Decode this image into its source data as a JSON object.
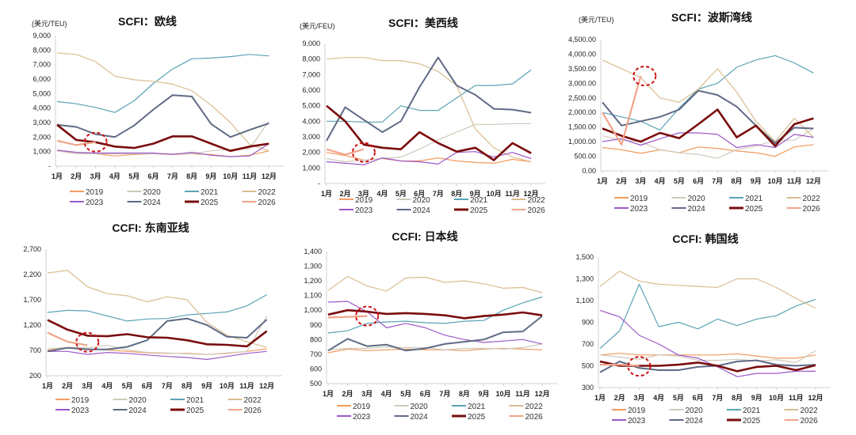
{
  "legend_years": [
    "2019",
    "2020",
    "2021",
    "2022",
    "2023",
    "2024",
    "2025",
    "2026"
  ],
  "series_colors": {
    "2019": "#f39b5e",
    "2020": "#cfcabc",
    "2021": "#5ba3b5",
    "2022": "#d9bd90",
    "2023": "#9b59c8",
    "2024": "#5f6a84",
    "2025": "#7a0c0c",
    "2026": "#f0a48a"
  },
  "highlight_color": "#cc1111",
  "chart_data": [
    {
      "type": "line",
      "title": "SCFI：欧线",
      "unit": "(美元/TEU)",
      "ylim": [
        0,
        9000
      ],
      "yticks": [
        "-",
        "1,000",
        "2,000",
        "3,000",
        "4,000",
        "5,000",
        "6,000",
        "7,000",
        "8,000",
        "9,000"
      ],
      "ytick_values": [
        0,
        1000,
        2000,
        3000,
        4000,
        5000,
        6000,
        7000,
        8000,
        9000
      ],
      "categories": [
        "1月",
        "2月",
        "3月",
        "4月",
        "5月",
        "6月",
        "7月",
        "8月",
        "9月",
        "10月",
        "11月",
        "12月"
      ],
      "legend": "bottom",
      "highlight": {
        "x": 3.0,
        "y": 1650
      },
      "series": [
        {
          "name": "2019",
          "values": [
            1050,
            950,
            850,
            700,
            800,
            850,
            800,
            850,
            800,
            650,
            750,
            1050
          ]
        },
        {
          "name": "2020",
          "values": [
            1050,
            850,
            850,
            850,
            850,
            850,
            850,
            850,
            1050,
            1150,
            1200,
            3100
          ]
        },
        {
          "name": "2021",
          "values": [
            4450,
            4300,
            4050,
            3700,
            4500,
            5700,
            6700,
            7400,
            7450,
            7550,
            7700,
            7600
          ]
        },
        {
          "name": "2022",
          "values": [
            7800,
            7700,
            7200,
            6200,
            5950,
            5850,
            5650,
            5200,
            4200,
            3000,
            1500,
            1050
          ]
        },
        {
          "name": "2023",
          "values": [
            1100,
            950,
            900,
            900,
            900,
            900,
            800,
            950,
            750,
            650,
            700,
            1550
          ]
        },
        {
          "name": "2024",
          "values": [
            2850,
            2700,
            2200,
            2000,
            2800,
            3900,
            4900,
            4800,
            2900,
            2000,
            2500,
            2950
          ]
        },
        {
          "name": "2025",
          "values": [
            2850,
            1800,
            1650,
            1350,
            1250,
            1550,
            2050,
            2050,
            1550,
            1050,
            1350,
            1550
          ]
        },
        {
          "name": "2026",
          "values": [
            1750,
            1450,
            1650
          ]
        }
      ]
    },
    {
      "type": "line",
      "title": "SCFI：美西线",
      "unit": "(美元/FEU)",
      "ylim": [
        0,
        9000
      ],
      "yticks": [
        "-",
        "1,000",
        "2,000",
        "3,000",
        "4,000",
        "5,000",
        "6,000",
        "7,000",
        "8,000",
        "9,000"
      ],
      "ytick_values": [
        0,
        1000,
        2000,
        3000,
        4000,
        5000,
        6000,
        7000,
        8000,
        9000
      ],
      "categories": [
        "1月",
        "2月",
        "3月",
        "4月",
        "5月",
        "6月",
        "7月",
        "8月",
        "9月",
        "10月",
        "11月",
        "12月"
      ],
      "legend": "bottom",
      "highlight": {
        "x": 3.0,
        "y": 2000
      },
      "series": [
        {
          "name": "2019",
          "values": [
            2000,
            1800,
            1500,
            1600,
            1450,
            1450,
            1650,
            1450,
            1350,
            1300,
            1550,
            1400
          ]
        },
        {
          "name": "2020",
          "values": [
            1600,
            1400,
            1500,
            1600,
            1700,
            2200,
            2800,
            3300,
            3800,
            3800,
            3850,
            3850
          ]
        },
        {
          "name": "2021",
          "values": [
            4000,
            4000,
            3950,
            3950,
            5000,
            4700,
            4700,
            5500,
            6300,
            6300,
            6400,
            7300
          ]
        },
        {
          "name": "2022",
          "values": [
            8000,
            8100,
            8100,
            7900,
            7900,
            7700,
            7200,
            6300,
            3500,
            2300,
            1700,
            1400
          ]
        },
        {
          "name": "2023",
          "values": [
            1400,
            1300,
            1200,
            1650,
            1450,
            1400,
            1250,
            2000,
            2050,
            1700,
            2000,
            1600
          ]
        },
        {
          "name": "2024",
          "values": [
            2750,
            4900,
            4100,
            3300,
            4000,
            6200,
            8100,
            6300,
            5700,
            4800,
            4750,
            4550
          ]
        },
        {
          "name": "2025",
          "values": [
            5000,
            4000,
            2500,
            2300,
            2200,
            3300,
            2600,
            2050,
            2300,
            1500,
            2600,
            1950
          ]
        },
        {
          "name": "2026",
          "values": [
            2200,
            1850,
            2200
          ]
        }
      ]
    },
    {
      "type": "line",
      "title": "SCFI：波斯湾线",
      "unit": "(美元/TEU)",
      "ylim": [
        0,
        4500
      ],
      "yticks": [
        "0.00",
        "500.00",
        "1,000.00",
        "1,500.00",
        "2,000.00",
        "2,500.00",
        "3,000.00",
        "3,500.00",
        "4,000.00",
        "4,500.00"
      ],
      "ytick_values": [
        0,
        500,
        1000,
        1500,
        2000,
        2500,
        3000,
        3500,
        4000,
        4500
      ],
      "categories": [
        "1月",
        "2月",
        "3月",
        "4月",
        "5月",
        "6月",
        "7月",
        "8月",
        "9月",
        "10月",
        "11月",
        "12月"
      ],
      "legend": "bottom",
      "highlight": {
        "x": 3.2,
        "y": 3250
      },
      "series": [
        {
          "name": "2019",
          "values": [
            800,
            720,
            600,
            720,
            620,
            820,
            770,
            680,
            620,
            500,
            820,
            900
          ]
        },
        {
          "name": "2020",
          "values": [
            1200,
            1050,
            1000,
            720,
            620,
            560,
            430,
            730,
            850,
            1050,
            1050,
            1450
          ]
        },
        {
          "name": "2021",
          "values": [
            2000,
            1850,
            1700,
            1400,
            2150,
            2800,
            3000,
            3550,
            3800,
            3950,
            3700,
            3350
          ]
        },
        {
          "name": "2022",
          "values": [
            3800,
            3500,
            3200,
            2500,
            2350,
            2800,
            3500,
            2700,
            1700,
            1000,
            1800,
            1150
          ]
        },
        {
          "name": "2023",
          "values": [
            1000,
            1100,
            880,
            1100,
            1300,
            1300,
            1250,
            800,
            900,
            800,
            1250,
            1150
          ]
        },
        {
          "name": "2024",
          "values": [
            2350,
            1550,
            1700,
            1850,
            2100,
            2750,
            2600,
            2200,
            1550,
            950,
            1480,
            1450
          ]
        },
        {
          "name": "2025",
          "values": [
            1450,
            1200,
            1000,
            1300,
            1120,
            1600,
            2100,
            1150,
            1550,
            850,
            1600,
            1800
          ]
        },
        {
          "name": "2026",
          "values": [
            2000,
            900,
            3250
          ]
        }
      ]
    },
    {
      "type": "line",
      "title": "CCFI: 东南亚线",
      "unit": "",
      "ylim": [
        200,
        2700
      ],
      "yticks": [
        "200",
        "700",
        "1,200",
        "1,700",
        "2,200",
        "2,700"
      ],
      "ytick_values": [
        200,
        700,
        1200,
        1700,
        2200,
        2700
      ],
      "categories": [
        "1月",
        "2月",
        "3月",
        "4月",
        "5月",
        "6月",
        "7月",
        "8月",
        "9月",
        "10月",
        "11月",
        "12月"
      ],
      "legend": "bottom",
      "highlight": {
        "x": 3.0,
        "y": 860
      },
      "series": [
        {
          "name": "2019",
          "values": [
            700,
            760,
            730,
            710,
            680,
            650,
            640,
            640,
            620,
            640,
            680,
            730
          ]
        },
        {
          "name": "2020",
          "values": [
            730,
            760,
            750,
            800,
            710,
            660,
            650,
            630,
            620,
            650,
            680,
            1380
          ]
        },
        {
          "name": "2021",
          "values": [
            1450,
            1490,
            1480,
            1380,
            1280,
            1320,
            1330,
            1400,
            1430,
            1460,
            1580,
            1800
          ]
        },
        {
          "name": "2022",
          "values": [
            2230,
            2280,
            1960,
            1820,
            1780,
            1660,
            1760,
            1700,
            1250,
            1000,
            870,
            760
          ]
        },
        {
          "name": "2023",
          "values": [
            680,
            680,
            620,
            660,
            640,
            610,
            580,
            560,
            520,
            580,
            640,
            680
          ]
        },
        {
          "name": "2024",
          "values": [
            680,
            750,
            720,
            720,
            770,
            900,
            1280,
            1330,
            1200,
            970,
            950,
            1310
          ]
        },
        {
          "name": "2025",
          "values": [
            1300,
            1110,
            990,
            980,
            1020,
            960,
            950,
            900,
            820,
            810,
            780,
            1080
          ]
        },
        {
          "name": "2026",
          "values": [
            1050,
            870,
            800
          ]
        }
      ]
    },
    {
      "type": "line",
      "title": "CCFI: 日本线",
      "unit": "",
      "ylim": [
        500,
        1400
      ],
      "yticks": [
        "500",
        "600",
        "700",
        "800",
        "900",
        "1,000",
        "1,100",
        "1,200",
        "1,300",
        "1,400"
      ],
      "ytick_values": [
        500,
        600,
        700,
        800,
        900,
        1000,
        1100,
        1200,
        1300,
        1400
      ],
      "categories": [
        "1月",
        "2月",
        "3月",
        "4月",
        "5月",
        "6月",
        "7月",
        "8月",
        "9月",
        "10月",
        "11月",
        "12月"
      ],
      "legend": "bottom",
      "highlight": {
        "x": 3.0,
        "y": 960
      },
      "series": [
        {
          "name": "2019",
          "values": [
            710,
            735,
            725,
            730,
            735,
            730,
            730,
            725,
            735,
            740,
            735,
            730
          ]
        },
        {
          "name": "2020",
          "values": [
            730,
            740,
            740,
            750,
            745,
            745,
            730,
            740,
            740,
            735,
            745,
            770
          ]
        },
        {
          "name": "2021",
          "values": [
            845,
            860,
            910,
            920,
            925,
            915,
            910,
            925,
            930,
            1000,
            1050,
            1090
          ]
        },
        {
          "name": "2022",
          "values": [
            1135,
            1230,
            1165,
            1130,
            1220,
            1225,
            1190,
            1200,
            1180,
            1150,
            1155,
            1120
          ]
        },
        {
          "name": "2023",
          "values": [
            1055,
            1060,
            990,
            880,
            910,
            880,
            830,
            800,
            780,
            790,
            800,
            770
          ]
        },
        {
          "name": "2024",
          "values": [
            725,
            805,
            755,
            765,
            725,
            740,
            770,
            785,
            800,
            850,
            855,
            960
          ]
        },
        {
          "name": "2025",
          "values": [
            970,
            1000,
            990,
            975,
            980,
            975,
            965,
            945,
            960,
            970,
            985,
            965
          ]
        },
        {
          "name": "2026",
          "values": [
            950,
            955,
            960
          ]
        }
      ]
    },
    {
      "type": "line",
      "title": "CCFI: 韩国线",
      "unit": "",
      "ylim": [
        300,
        1500
      ],
      "yticks": [
        "300",
        "500",
        "700",
        "900",
        "1,100",
        "1,300",
        "1,500"
      ],
      "ytick_values": [
        300,
        500,
        700,
        900,
        1100,
        1300,
        1500
      ],
      "categories": [
        "1月",
        "2月",
        "3月",
        "4月",
        "5月",
        "6月",
        "7月",
        "8月",
        "9月",
        "10月",
        "11月",
        "12月"
      ],
      "legend": "bottom",
      "highlight": {
        "x": 3.0,
        "y": 495
      },
      "series": [
        {
          "name": "2019",
          "values": [
            600,
            615,
            600,
            600,
            600,
            600,
            600,
            610,
            590,
            570,
            570,
            600
          ]
        },
        {
          "name": "2020",
          "values": [
            600,
            580,
            560,
            600,
            590,
            550,
            550,
            560,
            545,
            555,
            530,
            640
          ]
        },
        {
          "name": "2021",
          "values": [
            660,
            820,
            1250,
            860,
            900,
            840,
            930,
            870,
            930,
            960,
            1050,
            1110
          ]
        },
        {
          "name": "2022",
          "values": [
            1230,
            1370,
            1280,
            1250,
            1240,
            1230,
            1220,
            1300,
            1300,
            1220,
            1120,
            1030
          ]
        },
        {
          "name": "2023",
          "values": [
            1010,
            950,
            780,
            700,
            600,
            570,
            490,
            400,
            430,
            430,
            450,
            450
          ]
        },
        {
          "name": "2024",
          "values": [
            440,
            540,
            480,
            460,
            460,
            490,
            500,
            540,
            550,
            510,
            500,
            510
          ]
        },
        {
          "name": "2025",
          "values": [
            540,
            500,
            500,
            500,
            510,
            530,
            500,
            450,
            490,
            500,
            460,
            505
          ]
        },
        {
          "name": "2026",
          "values": [
            510,
            510,
            500
          ]
        }
      ]
    }
  ]
}
